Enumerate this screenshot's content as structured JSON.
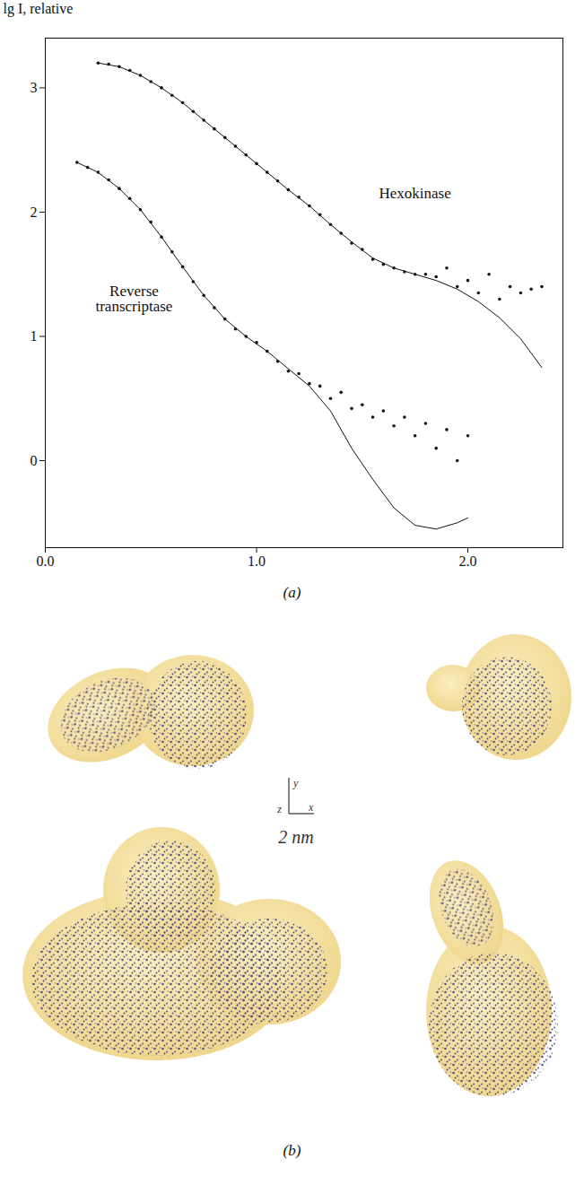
{
  "chart_data": {
    "type": "scatter",
    "caption": "(a)",
    "y_label": "lg I, relative",
    "xlim": [
      0,
      2.45
    ],
    "ylim": [
      -0.7,
      3.4
    ],
    "xticks": [
      {
        "value": 0,
        "label": "0.0"
      },
      {
        "value": 1,
        "label": "1.0"
      },
      {
        "value": 2,
        "label": "2.0"
      }
    ],
    "yticks": [
      0,
      1,
      2,
      3
    ],
    "grid": false,
    "annotations": [
      {
        "text": "Hexokinase",
        "x": 1.75,
        "y": 2.15
      },
      {
        "text": "Reverse transcriptase",
        "x": 0.42,
        "y": 1.3
      }
    ],
    "series": [
      {
        "name": "Hexokinase",
        "type": "scatter",
        "marker": "dot",
        "color": "#111111",
        "x": [
          0.25,
          0.3,
          0.35,
          0.4,
          0.45,
          0.5,
          0.55,
          0.6,
          0.65,
          0.7,
          0.75,
          0.8,
          0.85,
          0.9,
          0.95,
          1.0,
          1.05,
          1.1,
          1.15,
          1.2,
          1.25,
          1.3,
          1.35,
          1.4,
          1.45,
          1.5,
          1.55,
          1.6,
          1.65,
          1.7,
          1.75,
          1.8,
          1.85,
          1.9,
          1.95,
          2.0,
          2.05,
          2.1,
          2.15,
          2.2,
          2.25,
          2.3,
          2.35
        ],
        "values": [
          3.2,
          3.19,
          3.17,
          3.14,
          3.1,
          3.05,
          3.0,
          2.94,
          2.88,
          2.81,
          2.74,
          2.67,
          2.6,
          2.53,
          2.46,
          2.39,
          2.32,
          2.25,
          2.18,
          2.12,
          2.05,
          1.98,
          1.9,
          1.83,
          1.75,
          1.7,
          1.62,
          1.58,
          1.55,
          1.52,
          1.5,
          1.5,
          1.48,
          1.55,
          1.4,
          1.45,
          1.35,
          1.5,
          1.3,
          1.4,
          1.35,
          1.38,
          1.4
        ]
      },
      {
        "name": "Hexokinase",
        "type": "line",
        "line_style": "solid",
        "color": "#111111",
        "x": [
          0.25,
          0.35,
          0.45,
          0.55,
          0.65,
          0.75,
          0.85,
          0.95,
          1.05,
          1.15,
          1.25,
          1.35,
          1.45,
          1.55,
          1.65,
          1.75,
          1.85,
          1.95,
          2.05,
          2.15,
          2.25,
          2.35
        ],
        "values": [
          3.2,
          3.17,
          3.1,
          3.0,
          2.88,
          2.74,
          2.6,
          2.46,
          2.32,
          2.18,
          2.05,
          1.9,
          1.76,
          1.63,
          1.55,
          1.5,
          1.45,
          1.38,
          1.28,
          1.15,
          0.98,
          0.75
        ]
      },
      {
        "name": "Reverse transcriptase",
        "type": "scatter",
        "marker": "dot",
        "color": "#111111",
        "x": [
          0.15,
          0.2,
          0.25,
          0.3,
          0.35,
          0.4,
          0.45,
          0.5,
          0.55,
          0.6,
          0.65,
          0.7,
          0.75,
          0.8,
          0.85,
          0.9,
          0.95,
          1.0,
          1.05,
          1.1,
          1.15,
          1.2,
          1.25,
          1.3,
          1.35,
          1.4,
          1.45,
          1.5,
          1.55,
          1.6,
          1.65,
          1.7,
          1.75,
          1.8,
          1.85,
          1.9,
          1.95,
          2.0
        ],
        "values": [
          2.4,
          2.36,
          2.32,
          2.26,
          2.19,
          2.11,
          2.02,
          1.92,
          1.8,
          1.68,
          1.56,
          1.44,
          1.33,
          1.23,
          1.14,
          1.06,
          1.0,
          0.95,
          0.88,
          0.8,
          0.72,
          0.7,
          0.62,
          0.6,
          0.5,
          0.55,
          0.42,
          0.45,
          0.35,
          0.4,
          0.28,
          0.35,
          0.2,
          0.3,
          0.1,
          0.25,
          0.0,
          0.2
        ]
      },
      {
        "name": "Reverse transcriptase",
        "type": "line",
        "line_style": "solid",
        "color": "#111111",
        "x": [
          0.15,
          0.25,
          0.35,
          0.45,
          0.55,
          0.65,
          0.75,
          0.85,
          0.95,
          1.05,
          1.15,
          1.25,
          1.35,
          1.45,
          1.55,
          1.65,
          1.75,
          1.85,
          1.95,
          2.0
        ],
        "values": [
          2.4,
          2.32,
          2.19,
          2.02,
          1.8,
          1.56,
          1.33,
          1.14,
          1.0,
          0.88,
          0.74,
          0.6,
          0.4,
          0.1,
          -0.15,
          -0.38,
          -0.52,
          -0.55,
          -0.5,
          -0.46
        ]
      }
    ]
  },
  "panel_b": {
    "caption": "(b)",
    "scale_bar": "2 nm",
    "axis_labels": {
      "vertical": "y",
      "origin": "z",
      "horizontal": "x"
    }
  }
}
